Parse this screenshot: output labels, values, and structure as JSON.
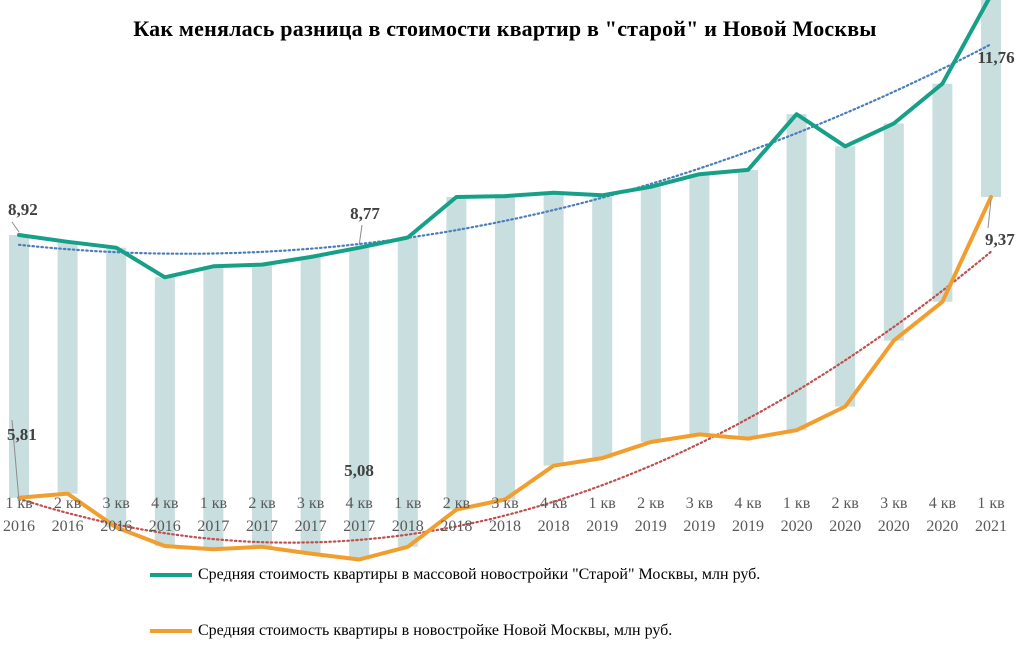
{
  "chart_data": {
    "type": "line",
    "title": "Как менялась разница в стоимости квартир в \"старой\" и Новой Москвы",
    "categories": [
      [
        "1 кв",
        "2016"
      ],
      [
        "2 кв",
        "2016"
      ],
      [
        "3 кв",
        "2016"
      ],
      [
        "4 кв",
        "2016"
      ],
      [
        "1 кв",
        "2017"
      ],
      [
        "2 кв",
        "2017"
      ],
      [
        "3 кв",
        "2017"
      ],
      [
        "4 кв",
        "2017"
      ],
      [
        "1 кв",
        "2018"
      ],
      [
        "2 кв",
        "2018"
      ],
      [
        "3 кв",
        "2018"
      ],
      [
        "4 кв",
        "2018"
      ],
      [
        "1 кв",
        "2019"
      ],
      [
        "2 кв",
        "2019"
      ],
      [
        "3 кв",
        "2019"
      ],
      [
        "4 кв",
        "2019"
      ],
      [
        "1 кв",
        "2020"
      ],
      [
        "2 кв",
        "2020"
      ],
      [
        "3 кв",
        "2020"
      ],
      [
        "4 кв",
        "2020"
      ],
      [
        "1 кв",
        "2021"
      ]
    ],
    "series": [
      {
        "name": "Средняя стоимость квартиры в массовой новостройки \"Старой\" Москвы, млн руб.",
        "color": "#17A088",
        "values": [
          8.92,
          8.84,
          8.77,
          8.42,
          8.55,
          8.57,
          8.66,
          8.77,
          8.89,
          9.37,
          9.38,
          9.42,
          9.39,
          9.49,
          9.64,
          9.69,
          10.35,
          9.97,
          10.24,
          10.71,
          11.76
        ]
      },
      {
        "name": "Средняя стоимость квартиры в новостройке Новой Москвы, млн руб.",
        "color": "#F29E2E",
        "values": [
          5.81,
          5.86,
          5.46,
          5.24,
          5.2,
          5.23,
          5.15,
          5.08,
          5.23,
          5.67,
          5.79,
          6.19,
          6.28,
          6.47,
          6.56,
          6.51,
          6.61,
          6.89,
          7.67,
          8.13,
          9.37
        ]
      }
    ],
    "range_bars": {
      "color": "#C9DEDF"
    },
    "trendlines": [
      {
        "color": "#4A7EBB",
        "style": "dotted"
      },
      {
        "color": "#C0504D",
        "style": "dotted"
      }
    ],
    "data_labels": [
      "8,92",
      "8,77",
      "11,76",
      "5,81",
      "5,08",
      "9,37"
    ],
    "legend_position": "bottom",
    "grid": false
  }
}
